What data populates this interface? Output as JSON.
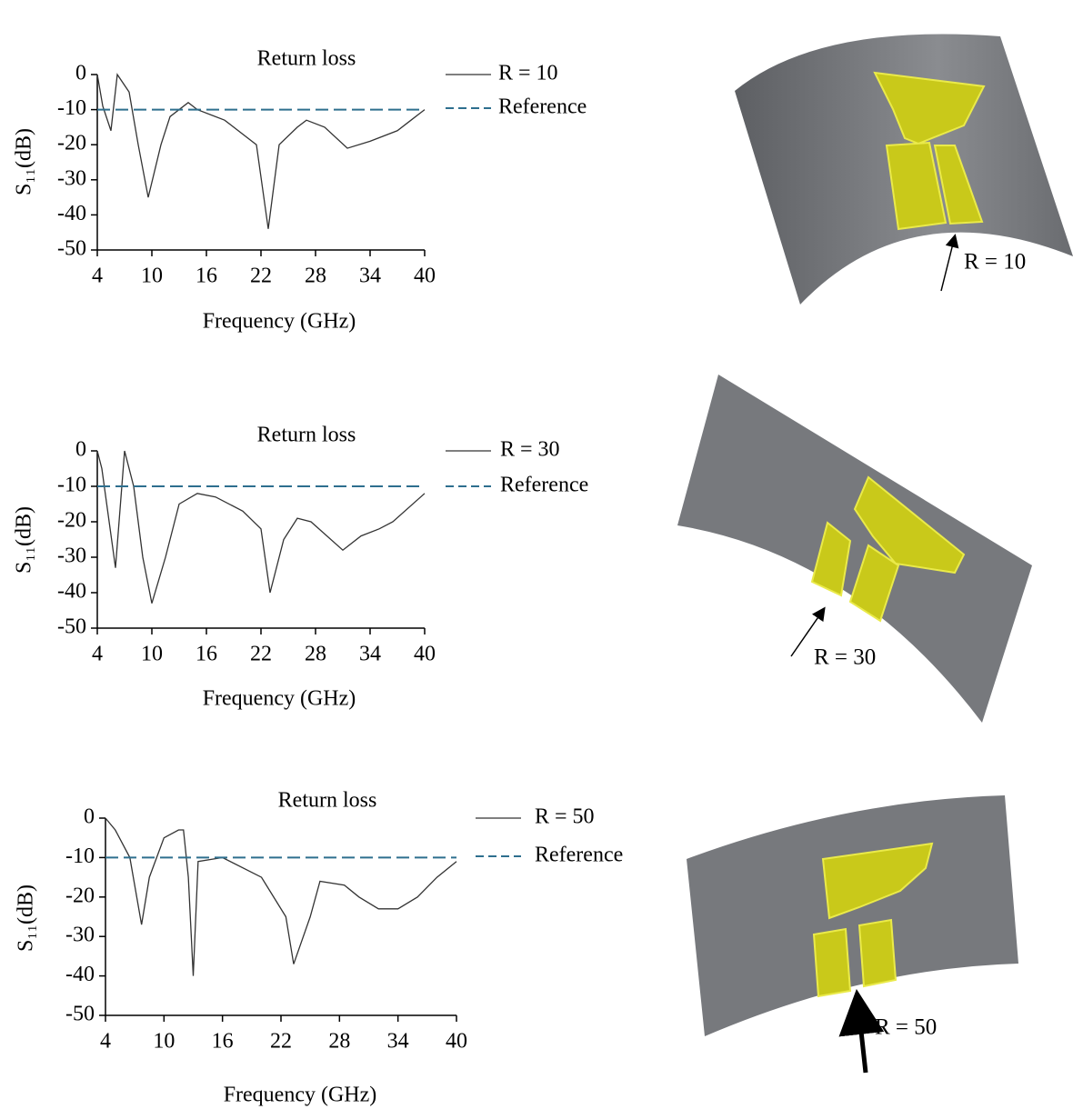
{
  "chart_data": [
    {
      "type": "line",
      "title": "Return loss",
      "xlabel": "Frequency (GHz)",
      "ylabel": "S₁₁(dB)",
      "xlim": [
        4,
        40
      ],
      "xticks": [
        4,
        10,
        16,
        22,
        28,
        34,
        40
      ],
      "ylim": [
        -50,
        0
      ],
      "yticks": [
        0,
        -10,
        -20,
        -30,
        -40,
        -50
      ],
      "series": [
        {
          "name": "R = 10",
          "color": "#333333",
          "x": [
            4,
            4.6,
            5.5,
            6.2,
            7.5,
            8.5,
            9.6,
            11,
            12,
            14,
            15,
            18,
            21.5,
            22.8,
            24,
            26,
            27,
            29,
            31.5,
            34,
            37,
            38.5,
            40
          ],
          "values": [
            0,
            -9,
            -16,
            0,
            -5,
            -20,
            -35,
            -20,
            -12,
            -8,
            -10,
            -13,
            -20,
            -44,
            -20,
            -15,
            -13,
            -15,
            -21,
            -19,
            -16,
            -13,
            -10
          ]
        },
        {
          "name": "Reference",
          "color": "#2e6f8e",
          "dashed": true,
          "x": [
            4,
            40
          ],
          "values": [
            -10,
            -10
          ]
        }
      ]
    },
    {
      "type": "line",
      "title": "Return loss",
      "xlabel": "Frequency (GHz)",
      "ylabel": "S₁₁(dB)",
      "xlim": [
        4,
        40
      ],
      "xticks": [
        4,
        10,
        16,
        22,
        28,
        34,
        40
      ],
      "ylim": [
        -50,
        0
      ],
      "yticks": [
        0,
        -10,
        -20,
        -30,
        -40,
        -50
      ],
      "series": [
        {
          "name": "R = 30",
          "color": "#333333",
          "x": [
            4,
            4.5,
            6,
            7,
            8,
            9,
            10,
            11.5,
            13,
            15,
            17,
            20,
            22,
            23,
            24.5,
            26,
            27.5,
            31,
            33,
            35,
            36.5,
            40
          ],
          "values": [
            0,
            -5,
            -33,
            0,
            -10,
            -30,
            -43,
            -30,
            -15,
            -12,
            -13,
            -17,
            -22,
            -40,
            -25,
            -19,
            -20,
            -28,
            -24,
            -22,
            -20,
            -12
          ]
        },
        {
          "name": "Reference",
          "color": "#2e6f8e",
          "dashed": true,
          "x": [
            4,
            40
          ],
          "values": [
            -10,
            -10
          ]
        }
      ]
    },
    {
      "type": "line",
      "title": "Return loss",
      "xlabel": "Frequency (GHz)",
      "ylabel": "S₁₁(dB)",
      "xlim": [
        4,
        40
      ],
      "xticks": [
        4,
        10,
        16,
        22,
        28,
        34,
        40
      ],
      "ylim": [
        -50,
        0
      ],
      "yticks": [
        0,
        -10,
        -20,
        -30,
        -40,
        -50
      ],
      "series": [
        {
          "name": "R = 50",
          "color": "#333333",
          "x": [
            4,
            5,
            6.5,
            7.7,
            8.5,
            10,
            11.5,
            12,
            12.5,
            13,
            13.5,
            16,
            20,
            22.5,
            23.3,
            25,
            26,
            28.5,
            30,
            32,
            34,
            36,
            38,
            40
          ],
          "values": [
            0,
            -3,
            -10,
            -27,
            -15,
            -5,
            -3,
            -3,
            -15,
            -40,
            -11,
            -10,
            -15,
            -25,
            -37,
            -25,
            -16,
            -17,
            -20,
            -23,
            -23,
            -20,
            -15,
            -11
          ]
        },
        {
          "name": "Reference",
          "color": "#2e6f8e",
          "dashed": true,
          "x": [
            4,
            40
          ],
          "values": [
            -10,
            -10
          ]
        }
      ]
    }
  ],
  "illustrations": [
    {
      "label": "R = 10"
    },
    {
      "label": "R = 30"
    },
    {
      "label": "R = 50"
    }
  ]
}
